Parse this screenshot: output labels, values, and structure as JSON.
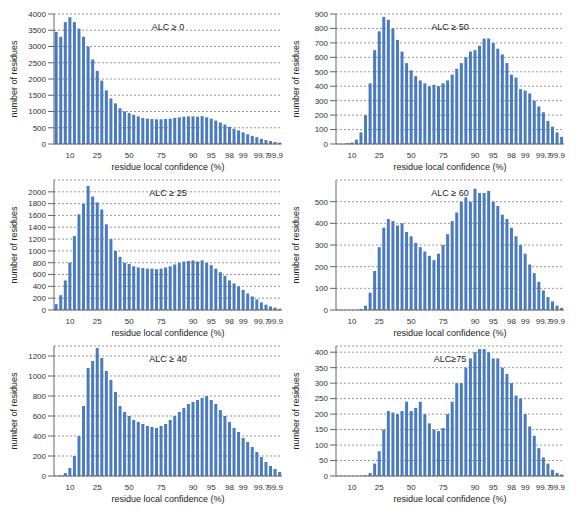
{
  "chart_data": [
    {
      "type": "bar",
      "title": "ALC ≥ 0",
      "xlabel": "residue local confidence (%)",
      "ylabel": "number of residues",
      "color": "#4a7bc0",
      "grid": true,
      "categories": [
        null,
        null,
        null,
        "10",
        null,
        null,
        null,
        null,
        null,
        "25",
        null,
        null,
        null,
        null,
        null,
        null,
        "50",
        null,
        null,
        null,
        null,
        null,
        null,
        "75",
        null,
        null,
        null,
        null,
        null,
        null,
        "90",
        null,
        null,
        null,
        "95",
        null,
        null,
        null,
        "98",
        null,
        null,
        "99",
        null,
        null,
        null,
        "99.7",
        null,
        null,
        "99.9",
        null
      ],
      "values": [
        3450,
        3300,
        3750,
        3900,
        3750,
        3550,
        3300,
        3000,
        2600,
        2250,
        1950,
        1650,
        1400,
        1250,
        1100,
        1000,
        950,
        900,
        850,
        800,
        780,
        770,
        760,
        760,
        770,
        780,
        800,
        820,
        840,
        850,
        850,
        840,
        860,
        820,
        780,
        720,
        660,
        600,
        530,
        470,
        420,
        360,
        300,
        250,
        210,
        160,
        120,
        90,
        60,
        40
      ],
      "ylim": [
        0,
        4000
      ],
      "yticks": [
        0,
        500,
        1000,
        1500,
        2000,
        2500,
        3000,
        3500,
        4000
      ]
    },
    {
      "type": "bar",
      "title": "ALC ≥ 50",
      "xlabel": "residue local confidence (%)",
      "ylabel": "number of residues",
      "color": "#4a7bc0",
      "grid": true,
      "categories": [
        null,
        null,
        null,
        "10",
        null,
        null,
        null,
        null,
        null,
        "25",
        null,
        null,
        null,
        null,
        null,
        null,
        "50",
        null,
        null,
        null,
        null,
        null,
        null,
        "75",
        null,
        null,
        null,
        null,
        null,
        null,
        "90",
        null,
        null,
        null,
        "95",
        null,
        null,
        null,
        "98",
        null,
        null,
        "99",
        null,
        null,
        null,
        "99.7",
        null,
        null,
        "99.9",
        null
      ],
      "values": [
        0,
        0,
        5,
        10,
        30,
        80,
        200,
        420,
        650,
        780,
        880,
        860,
        800,
        720,
        640,
        560,
        510,
        470,
        440,
        420,
        400,
        410,
        400,
        420,
        440,
        480,
        520,
        560,
        600,
        640,
        650,
        680,
        730,
        730,
        700,
        660,
        620,
        560,
        480,
        460,
        380,
        370,
        350,
        300,
        260,
        220,
        160,
        120,
        80,
        50
      ],
      "ylim": [
        0,
        900
      ],
      "yticks": [
        0,
        100,
        200,
        300,
        400,
        500,
        600,
        700,
        800,
        900
      ]
    },
    {
      "type": "bar",
      "title": "ALC ≥ 25",
      "xlabel": "residue local confidence (%)",
      "ylabel": "number of residues",
      "color": "#4a7bc0",
      "grid": true,
      "categories": [
        null,
        null,
        null,
        "10",
        null,
        null,
        null,
        null,
        null,
        "25",
        null,
        null,
        null,
        null,
        null,
        null,
        "50",
        null,
        null,
        null,
        null,
        null,
        null,
        "75",
        null,
        null,
        null,
        null,
        null,
        null,
        "90",
        null,
        null,
        null,
        "95",
        null,
        null,
        null,
        "98",
        null,
        null,
        "99",
        null,
        null,
        null,
        "99.7",
        null,
        null,
        "99.9",
        null
      ],
      "values": [
        100,
        250,
        500,
        800,
        1250,
        1620,
        1800,
        2100,
        1920,
        1820,
        1700,
        1450,
        1200,
        1000,
        900,
        800,
        780,
        740,
        720,
        710,
        700,
        700,
        690,
        700,
        720,
        740,
        770,
        800,
        820,
        830,
        840,
        820,
        840,
        800,
        760,
        700,
        640,
        580,
        500,
        450,
        400,
        340,
        280,
        230,
        180,
        130,
        90,
        60,
        40,
        20
      ],
      "ylim": [
        0,
        2200
      ],
      "yticks": [
        0,
        200,
        400,
        600,
        800,
        1000,
        1200,
        1400,
        1600,
        1800,
        2000
      ]
    },
    {
      "type": "bar",
      "title": "ALC ≥ 60",
      "xlabel": "residue local confidence (%)",
      "ylabel": "number of residues",
      "color": "#4a7bc0",
      "grid": true,
      "categories": [
        null,
        null,
        null,
        "10",
        null,
        null,
        null,
        null,
        null,
        "25",
        null,
        null,
        null,
        null,
        null,
        null,
        "50",
        null,
        null,
        null,
        null,
        null,
        null,
        "75",
        null,
        null,
        null,
        null,
        null,
        null,
        "90",
        null,
        null,
        null,
        "95",
        null,
        null,
        null,
        "98",
        null,
        null,
        "99",
        null,
        null,
        null,
        "99.7",
        null,
        null,
        "99.9",
        null
      ],
      "values": [
        0,
        0,
        0,
        0,
        0,
        5,
        20,
        80,
        180,
        290,
        380,
        420,
        410,
        390,
        400,
        360,
        340,
        310,
        290,
        270,
        250,
        230,
        260,
        300,
        350,
        410,
        450,
        500,
        520,
        500,
        560,
        540,
        540,
        550,
        500,
        480,
        440,
        420,
        380,
        340,
        300,
        260,
        210,
        170,
        130,
        90,
        60,
        40,
        20,
        10
      ],
      "ylim": [
        0,
        600
      ],
      "yticks": [
        0,
        100,
        200,
        300,
        400,
        500
      ]
    },
    {
      "type": "bar",
      "title": "ALC ≥ 40",
      "xlabel": "residue local confidence (%)",
      "ylabel": "number of residues",
      "color": "#4a7bc0",
      "grid": true,
      "categories": [
        null,
        null,
        null,
        "10",
        null,
        null,
        null,
        null,
        null,
        "25",
        null,
        null,
        null,
        null,
        null,
        null,
        "50",
        null,
        null,
        null,
        null,
        null,
        null,
        "75",
        null,
        null,
        null,
        null,
        null,
        null,
        "90",
        null,
        null,
        null,
        "95",
        null,
        null,
        null,
        "98",
        null,
        null,
        "99",
        null,
        null,
        null,
        "99.7",
        null,
        null,
        "99.9",
        null
      ],
      "values": [
        0,
        5,
        30,
        80,
        200,
        400,
        700,
        1080,
        1150,
        1280,
        1180,
        1050,
        960,
        840,
        700,
        640,
        600,
        560,
        540,
        520,
        500,
        490,
        480,
        500,
        520,
        560,
        600,
        640,
        680,
        720,
        740,
        760,
        780,
        800,
        760,
        720,
        660,
        600,
        540,
        480,
        440,
        380,
        340,
        290,
        240,
        190,
        140,
        100,
        70,
        40
      ],
      "ylim": [
        0,
        1300
      ],
      "yticks": [
        0,
        200,
        400,
        600,
        800,
        1000,
        1200
      ]
    },
    {
      "type": "bar",
      "title": "ALC≥75",
      "xlabel": "residue local confidence (%)",
      "ylabel": "number of residues",
      "color": "#4a7bc0",
      "grid": true,
      "categories": [
        null,
        null,
        null,
        "10",
        null,
        null,
        null,
        null,
        null,
        "25",
        null,
        null,
        null,
        null,
        null,
        null,
        "50",
        null,
        null,
        null,
        null,
        null,
        null,
        "75",
        null,
        null,
        null,
        null,
        null,
        null,
        "90",
        null,
        null,
        null,
        "95",
        null,
        null,
        null,
        "98",
        null,
        null,
        "99",
        null,
        null,
        null,
        "99.7",
        null,
        null,
        "99.9",
        null
      ],
      "values": [
        0,
        0,
        0,
        0,
        0,
        0,
        2,
        10,
        40,
        80,
        150,
        210,
        205,
        200,
        210,
        240,
        210,
        220,
        240,
        200,
        170,
        150,
        145,
        155,
        200,
        240,
        300,
        300,
        350,
        380,
        400,
        410,
        410,
        400,
        380,
        380,
        350,
        330,
        300,
        260,
        250,
        200,
        160,
        130,
        90,
        60,
        40,
        20,
        10,
        5
      ],
      "ylim": [
        0,
        420
      ],
      "yticks": [
        0,
        50,
        100,
        150,
        200,
        250,
        300,
        350,
        400
      ]
    }
  ]
}
